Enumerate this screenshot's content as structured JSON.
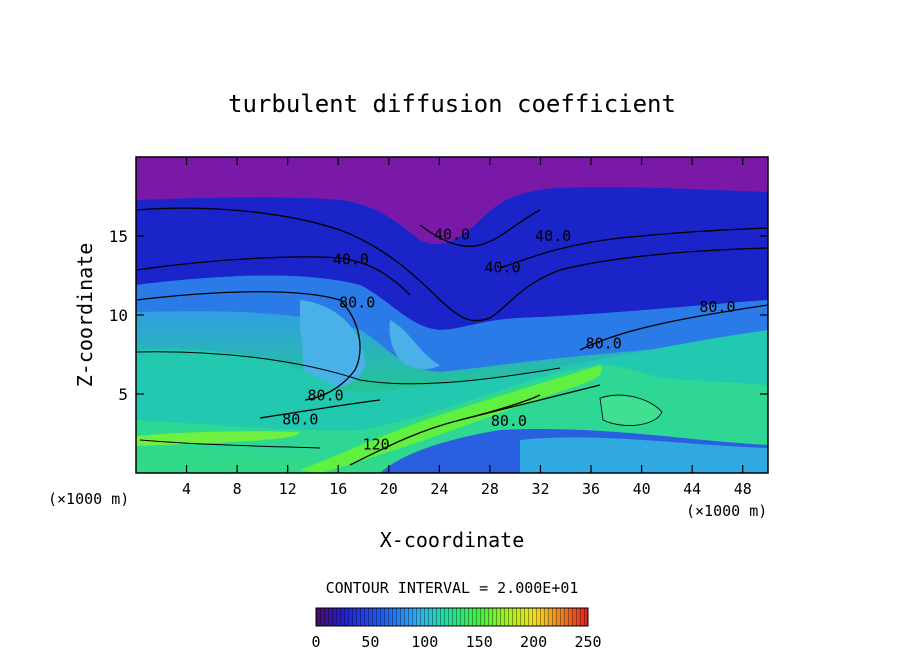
{
  "chart_data": {
    "type": "contour",
    "title": "turbulent diffusion coefficient",
    "xlabel": "X-coordinate",
    "ylabel": "Z-coordinate",
    "x_unit": "(×1000 m)",
    "z_unit": "(×1000 m)",
    "xlim": [
      0,
      50
    ],
    "ylim": [
      0,
      20
    ],
    "x_ticks": [
      4,
      8,
      12,
      16,
      20,
      24,
      28,
      32,
      36,
      40,
      44,
      48
    ],
    "y_ticks": [
      5,
      10,
      15
    ],
    "contour_interval_label": "CONTOUR INTERVAL = 2.000E+01",
    "colorbar": {
      "min": 0,
      "max": 250,
      "ticks": [
        0,
        50,
        100,
        150,
        200,
        250
      ]
    },
    "contour_labels": [
      {
        "text": "40.0",
        "x": 17.0,
        "z": 13.5
      },
      {
        "text": "40.0",
        "x": 25.0,
        "z": 15.1
      },
      {
        "text": "40.0",
        "x": 33.0,
        "z": 15.0
      },
      {
        "text": "40.0",
        "x": 29.0,
        "z": 13.0
      },
      {
        "text": "80.0",
        "x": 17.5,
        "z": 10.8
      },
      {
        "text": "80.0",
        "x": 46.0,
        "z": 10.5
      },
      {
        "text": "80.0",
        "x": 37.0,
        "z": 8.2
      },
      {
        "text": "80.0",
        "x": 15.0,
        "z": 4.9
      },
      {
        "text": "80.0",
        "x": 13.0,
        "z": 3.4
      },
      {
        "text": "80.0",
        "x": 29.5,
        "z": 3.3
      },
      {
        "text": "120",
        "x": 19.0,
        "z": 1.8
      }
    ]
  }
}
